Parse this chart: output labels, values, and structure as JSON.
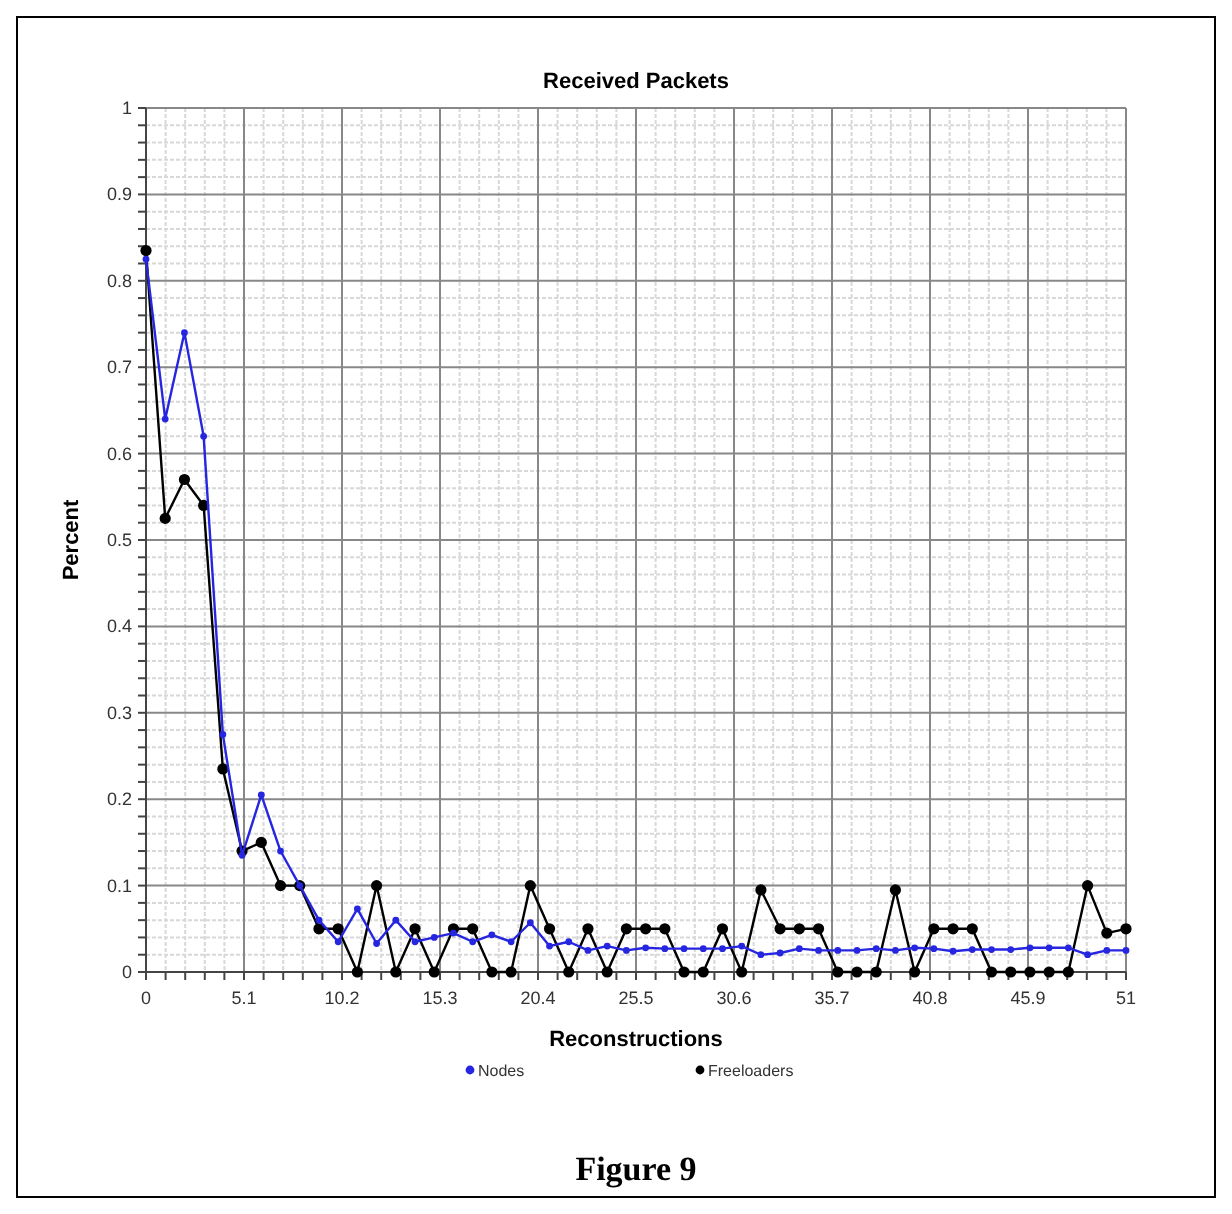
{
  "chart_data": {
    "type": "line",
    "title": "Received Packets",
    "xlabel": "Reconstructions",
    "ylabel": "Percent",
    "x": [
      0,
      1,
      2,
      3,
      4,
      5,
      6,
      7,
      8,
      9,
      10,
      11,
      12,
      13,
      14,
      15,
      16,
      17,
      18,
      19,
      20,
      21,
      22,
      23,
      24,
      25,
      26,
      27,
      28,
      29,
      30,
      31,
      32,
      33,
      34,
      35,
      36,
      37,
      38,
      39,
      40,
      41,
      42,
      43,
      44,
      45,
      46,
      47,
      48,
      49,
      50,
      51
    ],
    "series": [
      {
        "name": "Nodes",
        "color": "#2626e0",
        "values": [
          0.825,
          0.64,
          0.74,
          0.62,
          0.275,
          0.135,
          0.205,
          0.14,
          0.1,
          0.06,
          0.035,
          0.073,
          0.033,
          0.06,
          0.035,
          0.04,
          0.045,
          0.035,
          0.043,
          0.035,
          0.057,
          0.03,
          0.035,
          0.025,
          0.03,
          0.025,
          0.028,
          0.027,
          0.027,
          0.027,
          0.027,
          0.03,
          0.02,
          0.022,
          0.027,
          0.025,
          0.025,
          0.025,
          0.027,
          0.025,
          0.028,
          0.027,
          0.024,
          0.026,
          0.026,
          0.026,
          0.028,
          0.028,
          0.028,
          0.02,
          0.025,
          0.025
        ]
      },
      {
        "name": "Freeloaders",
        "color": "#000000",
        "values": [
          0.835,
          0.525,
          0.57,
          0.54,
          0.235,
          0.14,
          0.15,
          0.1,
          0.1,
          0.05,
          0.05,
          0,
          0.1,
          0,
          0.05,
          0,
          0.05,
          0.05,
          0,
          0,
          0.1,
          0.05,
          0,
          0.05,
          0,
          0.05,
          0.05,
          0.05,
          0,
          0,
          0.05,
          0,
          0.095,
          0.05,
          0.05,
          0.05,
          0,
          0,
          0,
          0.095,
          0,
          0.05,
          0.05,
          0.05,
          0,
          0,
          0,
          0,
          0,
          0.1,
          0.045,
          0.05
        ]
      }
    ],
    "xlim": [
      0,
      51
    ],
    "xticks": [
      0,
      5.1,
      10.2,
      15.3,
      20.4,
      25.5,
      30.6,
      35.7,
      40.8,
      45.9,
      51
    ],
    "ylim": [
      0,
      1
    ],
    "yticks": [
      0,
      0.1,
      0.2,
      0.3,
      0.4,
      0.5,
      0.6,
      0.7,
      0.8,
      0.9,
      1
    ],
    "grid": true,
    "legend": "bottom",
    "marker": "circle",
    "line_style": "solid",
    "annotations": [
      "Figure 9"
    ]
  }
}
